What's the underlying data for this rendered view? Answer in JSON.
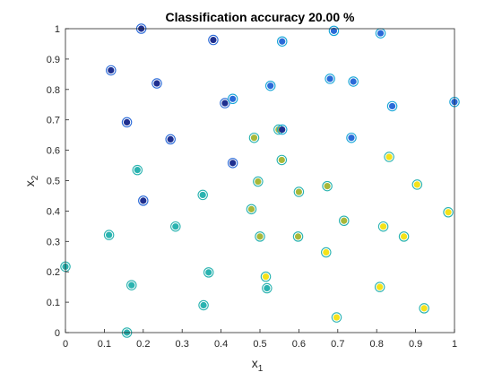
{
  "chart_data": {
    "type": "scatter",
    "title": "Classification accuracy 20.00 %",
    "xlabel": "x",
    "xlabel_sub": "1",
    "ylabel": "x",
    "ylabel_sub": "2",
    "xlim": [
      0,
      1
    ],
    "ylim": [
      0,
      1
    ],
    "xticks": [
      "0",
      "0.1",
      "0.2",
      "0.3",
      "0.4",
      "0.5",
      "0.6",
      "0.7",
      "0.8",
      "0.9",
      "1"
    ],
    "yticks": [
      "0",
      "0.1",
      "0.2",
      "0.3",
      "0.4",
      "0.5",
      "0.6",
      "0.7",
      "0.8",
      "0.9",
      "1"
    ],
    "grid": false,
    "colors": {
      "navy": "#1f2f8f",
      "blue": "#2a6ad8",
      "sky": "#18a6d8",
      "teal": "#2ab3b0",
      "olive": "#a8b83a",
      "yellow": "#f4e21a"
    },
    "points": [
      {
        "x": 0.195,
        "y": 1.0,
        "outer": "blue",
        "inner": "navy"
      },
      {
        "x": 0.38,
        "y": 0.963,
        "outer": "blue",
        "inner": "navy"
      },
      {
        "x": 0.557,
        "y": 0.958,
        "outer": "sky",
        "inner": "blue"
      },
      {
        "x": 0.69,
        "y": 0.993,
        "outer": "sky",
        "inner": "blue"
      },
      {
        "x": 0.81,
        "y": 0.985,
        "outer": "sky",
        "inner": "blue"
      },
      {
        "x": 0.117,
        "y": 0.863,
        "outer": "blue",
        "inner": "navy"
      },
      {
        "x": 0.235,
        "y": 0.82,
        "outer": "blue",
        "inner": "navy"
      },
      {
        "x": 0.527,
        "y": 0.812,
        "outer": "sky",
        "inner": "blue"
      },
      {
        "x": 0.68,
        "y": 0.835,
        "outer": "sky",
        "inner": "blue"
      },
      {
        "x": 0.74,
        "y": 0.826,
        "outer": "sky",
        "inner": "blue"
      },
      {
        "x": 0.84,
        "y": 0.745,
        "outer": "sky",
        "inner": "blue"
      },
      {
        "x": 1.0,
        "y": 0.759,
        "outer": "sky",
        "inner": "blue"
      },
      {
        "x": 0.41,
        "y": 0.755,
        "outer": "blue",
        "inner": "navy"
      },
      {
        "x": 0.43,
        "y": 0.769,
        "outer": "sky",
        "inner": "blue"
      },
      {
        "x": 0.158,
        "y": 0.692,
        "outer": "blue",
        "inner": "navy"
      },
      {
        "x": 0.27,
        "y": 0.636,
        "outer": "blue",
        "inner": "navy"
      },
      {
        "x": 0.485,
        "y": 0.641,
        "outer": "teal",
        "inner": "olive"
      },
      {
        "x": 0.548,
        "y": 0.668,
        "outer": "teal",
        "inner": "olive"
      },
      {
        "x": 0.557,
        "y": 0.668,
        "outer": "sky",
        "inner": "navy"
      },
      {
        "x": 0.735,
        "y": 0.641,
        "outer": "sky",
        "inner": "blue"
      },
      {
        "x": 0.43,
        "y": 0.558,
        "outer": "blue",
        "inner": "navy"
      },
      {
        "x": 0.556,
        "y": 0.568,
        "outer": "teal",
        "inner": "olive"
      },
      {
        "x": 0.832,
        "y": 0.578,
        "outer": "teal",
        "inner": "yellow"
      },
      {
        "x": 0.185,
        "y": 0.535,
        "outer": "teal",
        "inner": "teal"
      },
      {
        "x": 0.495,
        "y": 0.497,
        "outer": "teal",
        "inner": "olive"
      },
      {
        "x": 0.904,
        "y": 0.487,
        "outer": "teal",
        "inner": "yellow"
      },
      {
        "x": 0.6,
        "y": 0.463,
        "outer": "teal",
        "inner": "olive"
      },
      {
        "x": 0.673,
        "y": 0.482,
        "outer": "teal",
        "inner": "olive"
      },
      {
        "x": 0.353,
        "y": 0.453,
        "outer": "teal",
        "inner": "teal"
      },
      {
        "x": 0.2,
        "y": 0.434,
        "outer": "blue",
        "inner": "navy"
      },
      {
        "x": 0.478,
        "y": 0.406,
        "outer": "teal",
        "inner": "olive"
      },
      {
        "x": 0.984,
        "y": 0.396,
        "outer": "teal",
        "inner": "yellow"
      },
      {
        "x": 0.716,
        "y": 0.368,
        "outer": "teal",
        "inner": "olive"
      },
      {
        "x": 0.817,
        "y": 0.349,
        "outer": "teal",
        "inner": "yellow"
      },
      {
        "x": 0.283,
        "y": 0.349,
        "outer": "teal",
        "inner": "teal"
      },
      {
        "x": 0.112,
        "y": 0.321,
        "outer": "teal",
        "inner": "teal"
      },
      {
        "x": 0.5,
        "y": 0.316,
        "outer": "teal",
        "inner": "olive"
      },
      {
        "x": 0.598,
        "y": 0.316,
        "outer": "teal",
        "inner": "olive"
      },
      {
        "x": 0.87,
        "y": 0.316,
        "outer": "teal",
        "inner": "yellow"
      },
      {
        "x": 0.67,
        "y": 0.264,
        "outer": "teal",
        "inner": "yellow"
      },
      {
        "x": 0.0,
        "y": 0.217,
        "outer": "teal",
        "inner": "teal"
      },
      {
        "x": 0.368,
        "y": 0.198,
        "outer": "teal",
        "inner": "teal"
      },
      {
        "x": 0.515,
        "y": 0.184,
        "outer": "teal",
        "inner": "yellow"
      },
      {
        "x": 0.17,
        "y": 0.156,
        "outer": "teal",
        "inner": "teal"
      },
      {
        "x": 0.518,
        "y": 0.146,
        "outer": "teal",
        "inner": "teal"
      },
      {
        "x": 0.808,
        "y": 0.15,
        "outer": "teal",
        "inner": "yellow"
      },
      {
        "x": 0.355,
        "y": 0.09,
        "outer": "teal",
        "inner": "teal"
      },
      {
        "x": 0.922,
        "y": 0.08,
        "outer": "teal",
        "inner": "yellow"
      },
      {
        "x": 0.697,
        "y": 0.05,
        "outer": "teal",
        "inner": "yellow"
      },
      {
        "x": 0.158,
        "y": 0.0,
        "outer": "teal",
        "inner": "teal"
      }
    ]
  }
}
